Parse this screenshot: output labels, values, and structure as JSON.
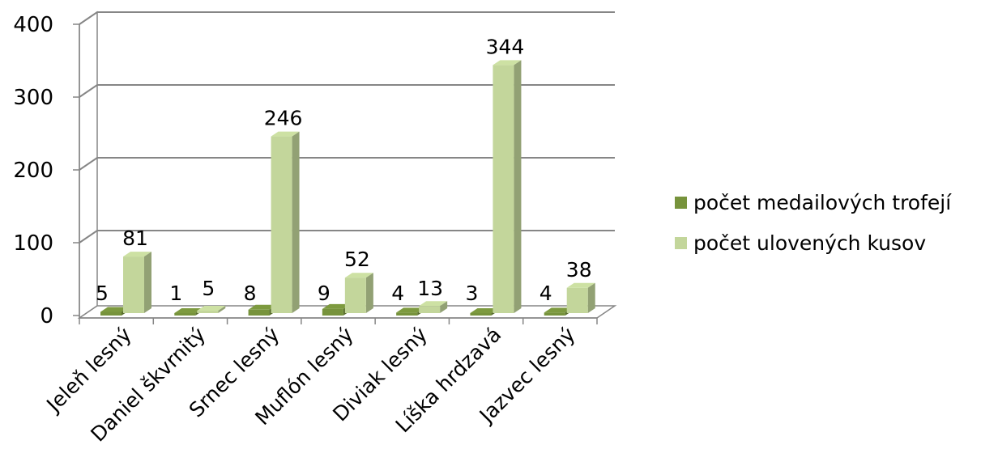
{
  "chart_data": {
    "type": "bar",
    "categories": [
      "Jeleň lesný",
      "Daniel škvrnitý",
      "Srnec lesný",
      "Muflón lesný",
      "Diviak lesný",
      "Líška hrdzavá",
      "Jazvec lesný"
    ],
    "series": [
      {
        "name": "počet medailových trofejí",
        "values": [
          5,
          1,
          8,
          9,
          4,
          3,
          4
        ],
        "color": "#77933c"
      },
      {
        "name": "počet ulovených kusov",
        "values": [
          81,
          5,
          246,
          52,
          13,
          344,
          38
        ],
        "color": "#c3d69b"
      }
    ],
    "y_ticks": [
      "0",
      "100",
      "200",
      "300",
      "400"
    ],
    "ylim": [
      0,
      400
    ],
    "grid": true,
    "legend_position": "right",
    "title": "",
    "xlabel": "",
    "ylabel": ""
  }
}
